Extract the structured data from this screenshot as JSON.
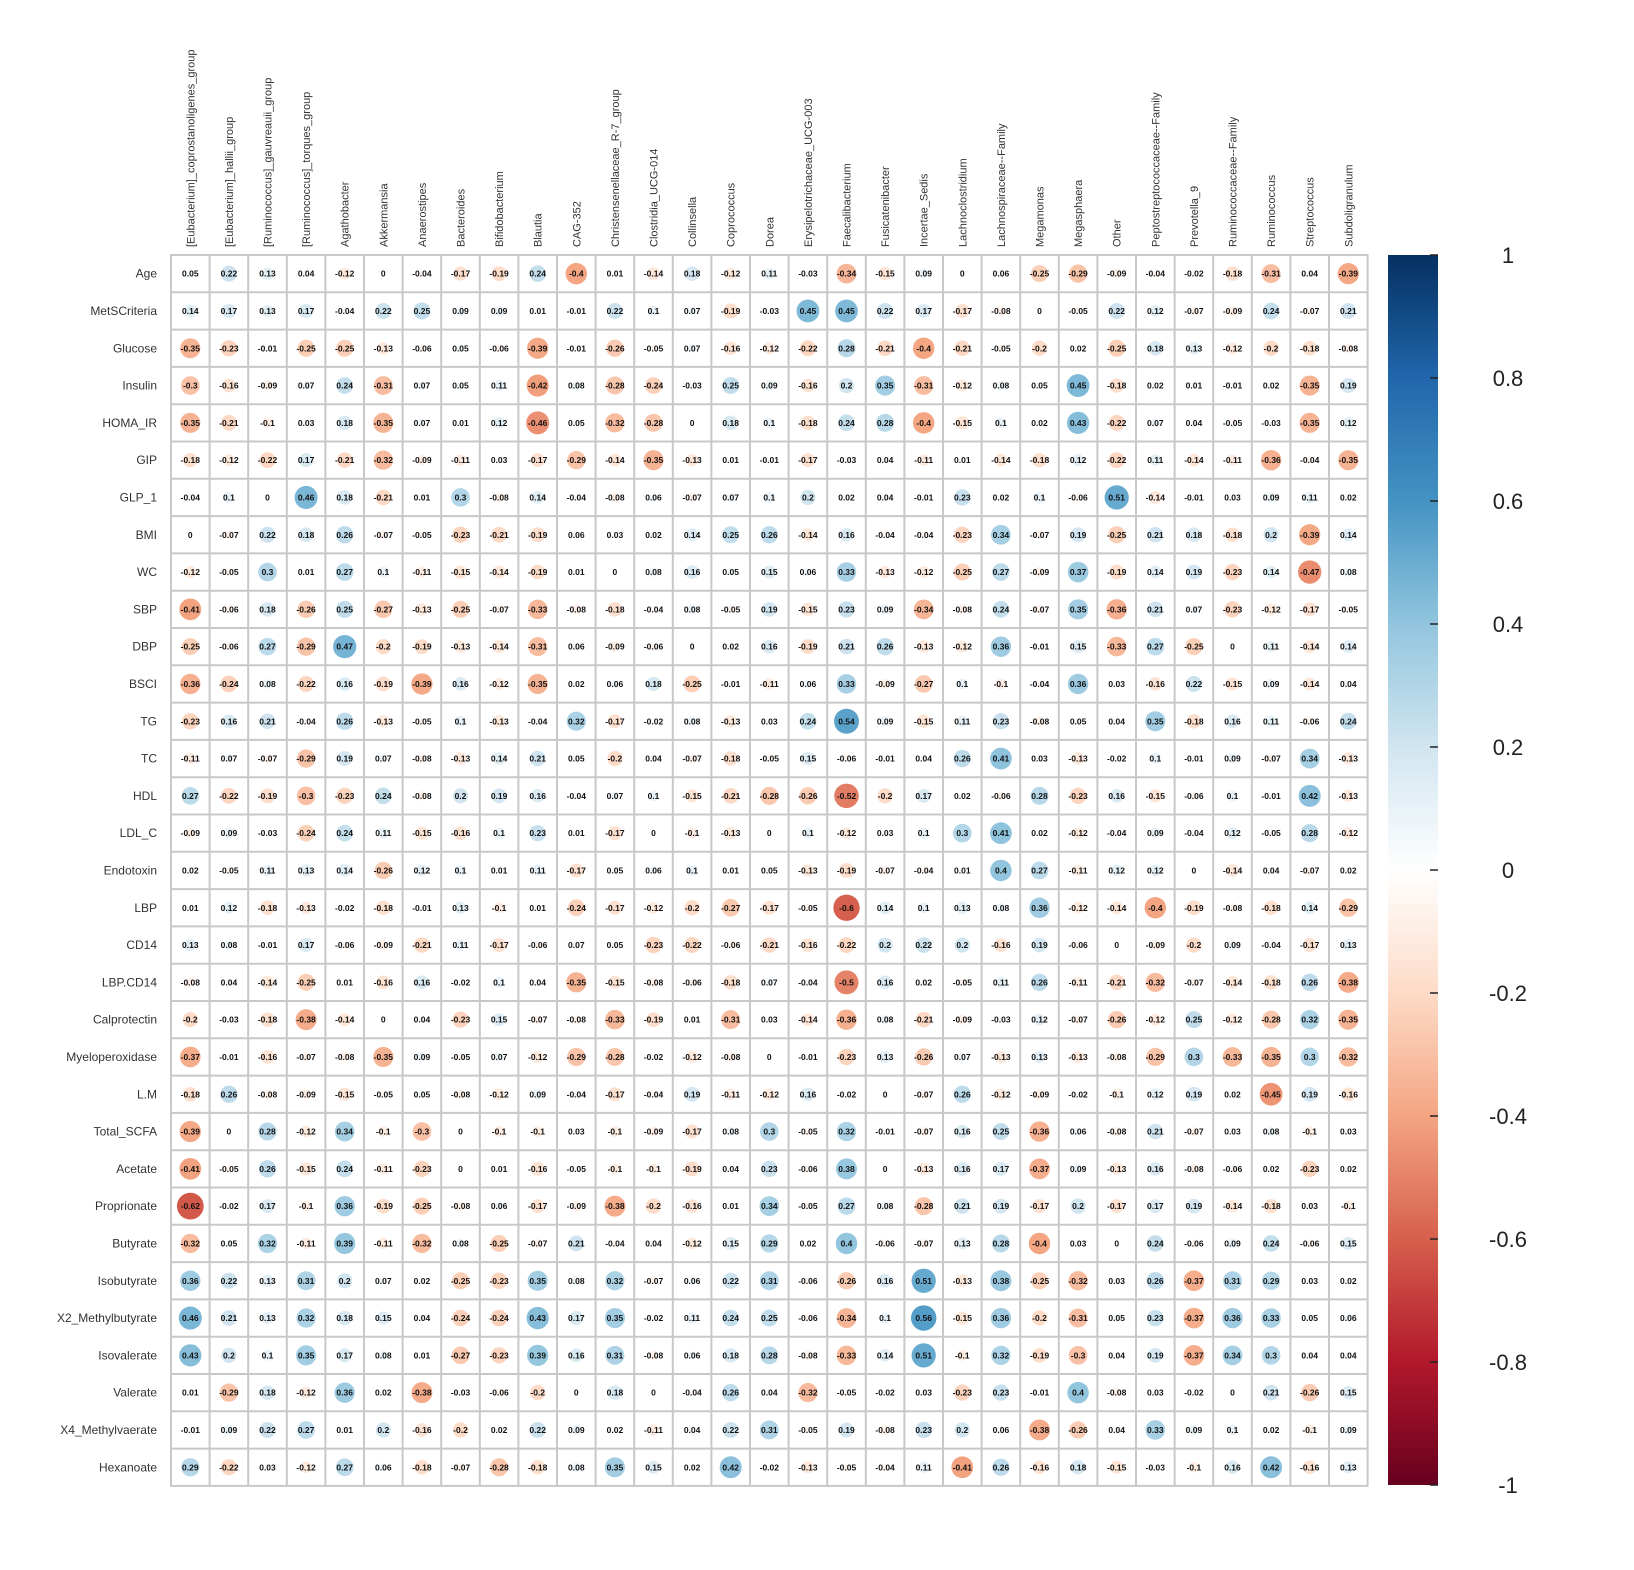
{
  "chart_data": {
    "type": "heatmap",
    "title": "",
    "columns": [
      "[Eubacterium]_coprostanoligenes_group",
      "[Eubacterium]_hallii_group",
      "[Ruminococcus]_gauvreauii_group",
      "[Ruminococcus]_torques_group",
      "Agathobacter",
      "Akkermansia",
      "Anaerostipes",
      "Bacteroides",
      "Bifidobacterium",
      "Blautia",
      "CAG-352",
      "Christensenellaceae_R-7_group",
      "Clostridia_UCG-014",
      "Collinsella",
      "Coprococcus",
      "Dorea",
      "Erysipelotrichaceae_UCG-003",
      "Faecalibacterium",
      "Fusicatenibacter",
      "Incertae_Sedis",
      "Lachnoclostridium",
      "Lachnospiraceae--Family",
      "Megamonas",
      "Megasphaera",
      "Other",
      "Peptostreptococcaceae--Family",
      "Prevotella_9",
      "Ruminococcaceae--Family",
      "Ruminococcus",
      "Streptococcus",
      "Subdoligranulum"
    ],
    "rows": [
      "Age",
      "MetSCriteria",
      "Glucose",
      "Insulin",
      "HOMA_IR",
      "GIP",
      "GLP_1",
      "BMI",
      "WC",
      "SBP",
      "DBP",
      "BSCI",
      "TG",
      "TC",
      "HDL",
      "LDL_C",
      "Endotoxin",
      "LBP",
      "CD14",
      "LBP.CD14",
      "Calprotectin",
      "Myeloperoxidase",
      "L.M",
      "Total_SCFA",
      "Acetate",
      "Proprionate",
      "Butyrate",
      "Isobutyrate",
      "X2_Methylbutyrate",
      "Isovalerate",
      "Valerate",
      "X4_Methylvaerate",
      "Hexanoate"
    ],
    "values": [
      [
        0.05,
        0.22,
        0.13,
        0.04,
        -0.12,
        0,
        -0.04,
        -0.17,
        -0.19,
        0.24,
        -0.4,
        0.01,
        -0.14,
        0.18,
        -0.12,
        0.11,
        -0.03,
        -0.34,
        -0.15,
        0.09,
        0,
        0.06,
        -0.25,
        -0.29,
        -0.09,
        -0.04,
        -0.02,
        -0.18,
        -0.31,
        0.04,
        -0.39
      ],
      [
        0.14,
        0.17,
        0.13,
        0.17,
        -0.04,
        0.22,
        0.25,
        0.09,
        0.09,
        0.01,
        -0.01,
        0.22,
        0.1,
        0.07,
        -0.19,
        -0.03,
        0.45,
        0.45,
        0.22,
        0.17,
        -0.17,
        -0.08,
        0,
        -0.05,
        0.22,
        0.12,
        -0.07,
        -0.09,
        0.24,
        -0.07,
        0.21
      ],
      [
        -0.35,
        -0.23,
        -0.01,
        -0.25,
        -0.25,
        -0.13,
        -0.06,
        0.05,
        -0.06,
        -0.39,
        -0.01,
        -0.26,
        -0.05,
        0.07,
        -0.16,
        -0.12,
        -0.22,
        0.28,
        -0.21,
        -0.4,
        -0.21,
        -0.05,
        -0.2,
        0.02,
        -0.25,
        0.18,
        0.13,
        -0.12,
        -0.2,
        -0.18,
        -0.08
      ],
      [
        -0.3,
        -0.16,
        -0.09,
        0.07,
        0.24,
        -0.31,
        0.07,
        0.05,
        0.11,
        -0.42,
        0.08,
        -0.28,
        -0.24,
        -0.03,
        0.25,
        0.09,
        -0.16,
        0.2,
        0.35,
        -0.31,
        -0.12,
        0.08,
        0.05,
        0.45,
        -0.18,
        0.02,
        0.01,
        -0.01,
        0.02,
        -0.35,
        0.19
      ],
      [
        -0.35,
        -0.21,
        -0.1,
        0.03,
        0.18,
        -0.35,
        0.07,
        0.01,
        0.12,
        -0.46,
        0.05,
        -0.32,
        -0.28,
        0,
        0.18,
        0.1,
        -0.18,
        0.24,
        0.28,
        -0.4,
        -0.15,
        0.1,
        0.02,
        0.43,
        -0.22,
        0.07,
        0.04,
        -0.05,
        -0.03,
        -0.35,
        0.12
      ],
      [
        -0.18,
        -0.12,
        -0.22,
        0.17,
        -0.21,
        -0.32,
        -0.09,
        -0.11,
        0.03,
        -0.17,
        -0.29,
        -0.14,
        -0.35,
        -0.13,
        0.01,
        -0.01,
        -0.17,
        -0.03,
        0.04,
        -0.11,
        0.01,
        -0.14,
        -0.18,
        0.12,
        -0.22,
        0.11,
        -0.14,
        -0.11,
        -0.36,
        -0.04,
        -0.35
      ],
      [
        -0.04,
        0.1,
        0,
        0.46,
        0.18,
        -0.21,
        0.01,
        0.3,
        -0.08,
        0.14,
        -0.04,
        -0.08,
        0.06,
        -0.07,
        0.07,
        0.1,
        0.2,
        0.02,
        0.04,
        -0.01,
        0.23,
        0.02,
        0.1,
        -0.06,
        0.51,
        -0.14,
        -0.01,
        0.03,
        0.09,
        0.11,
        0.02
      ],
      [
        0,
        -0.07,
        0.22,
        0.18,
        0.26,
        -0.07,
        -0.05,
        -0.23,
        -0.21,
        -0.19,
        0.06,
        0.03,
        0.02,
        0.14,
        0.25,
        0.26,
        -0.14,
        0.16,
        -0.04,
        -0.04,
        -0.23,
        0.34,
        -0.07,
        0.19,
        -0.25,
        0.21,
        0.18,
        -0.18,
        0.2,
        -0.39,
        0.14
      ],
      [
        -0.12,
        -0.05,
        0.3,
        0.01,
        0.27,
        0.1,
        -0.11,
        -0.15,
        -0.14,
        -0.19,
        0.01,
        0,
        0.08,
        0.16,
        0.05,
        0.15,
        0.06,
        0.33,
        -0.13,
        -0.12,
        -0.25,
        0.27,
        -0.09,
        0.37,
        -0.19,
        0.14,
        0.19,
        -0.23,
        0.14,
        -0.47,
        0.08
      ],
      [
        -0.41,
        -0.06,
        0.18,
        -0.26,
        0.25,
        -0.27,
        -0.13,
        -0.25,
        -0.07,
        -0.33,
        -0.08,
        -0.18,
        -0.04,
        0.08,
        -0.05,
        0.19,
        -0.15,
        0.23,
        0.09,
        -0.34,
        -0.08,
        0.24,
        -0.07,
        0.35,
        -0.36,
        0.21,
        0.07,
        -0.23,
        -0.12,
        -0.17,
        -0.05
      ],
      [
        -0.25,
        -0.06,
        0.27,
        -0.29,
        0.47,
        -0.2,
        -0.19,
        -0.13,
        -0.14,
        -0.31,
        0.06,
        -0.09,
        -0.06,
        0,
        0.02,
        0.16,
        -0.19,
        0.21,
        0.26,
        -0.13,
        -0.12,
        0.36,
        -0.01,
        0.15,
        -0.33,
        0.27,
        -0.25,
        0,
        0.11,
        -0.14,
        0.14
      ],
      [
        -0.36,
        -0.24,
        0.08,
        -0.22,
        0.16,
        -0.19,
        -0.39,
        0.16,
        -0.12,
        -0.35,
        0.02,
        0.06,
        0.18,
        -0.25,
        -0.01,
        -0.11,
        0.06,
        0.33,
        -0.09,
        -0.27,
        0.1,
        -0.1,
        -0.04,
        0.36,
        0.03,
        -0.16,
        0.22,
        -0.15,
        0.09,
        -0.14,
        0.04
      ],
      [
        -0.23,
        0.16,
        0.21,
        -0.04,
        0.26,
        -0.13,
        -0.05,
        0.1,
        -0.13,
        -0.04,
        0.32,
        -0.17,
        -0.02,
        0.08,
        -0.13,
        0.03,
        0.24,
        0.54,
        0.09,
        -0.15,
        0.11,
        0.23,
        -0.08,
        0.05,
        0.04,
        0.35,
        -0.18,
        0.16,
        0.11,
        -0.06,
        0.24
      ],
      [
        -0.11,
        0.07,
        -0.07,
        -0.29,
        0.19,
        0.07,
        -0.08,
        -0.13,
        0.14,
        0.21,
        0.05,
        -0.2,
        0.04,
        -0.07,
        -0.18,
        -0.05,
        0.15,
        -0.06,
        -0.01,
        0.04,
        0.26,
        0.41,
        0.03,
        -0.13,
        -0.02,
        0.1,
        -0.01,
        0.09,
        -0.07,
        0.34,
        -0.13
      ],
      [
        0.27,
        -0.22,
        -0.19,
        -0.3,
        -0.23,
        0.24,
        -0.08,
        0.2,
        0.19,
        0.16,
        -0.04,
        0.07,
        0.1,
        -0.15,
        -0.21,
        -0.28,
        -0.26,
        -0.52,
        -0.2,
        0.17,
        0.02,
        -0.06,
        0.28,
        -0.23,
        0.16,
        -0.15,
        -0.06,
        0.1,
        -0.01,
        0.42,
        -0.13
      ],
      [
        -0.09,
        0.09,
        -0.03,
        -0.24,
        0.24,
        0.11,
        -0.15,
        -0.16,
        0.1,
        0.23,
        0.01,
        -0.17,
        0,
        -0.1,
        -0.13,
        0,
        0.1,
        -0.12,
        0.03,
        0.1,
        0.3,
        0.41,
        0.02,
        -0.12,
        -0.04,
        0.09,
        -0.04,
        0.12,
        -0.05,
        0.28,
        -0.12
      ],
      [
        0.02,
        -0.05,
        0.11,
        0.13,
        0.14,
        -0.26,
        0.12,
        0.1,
        0.01,
        0.11,
        -0.17,
        0.05,
        0.06,
        0.1,
        0.01,
        0.05,
        -0.13,
        -0.19,
        -0.07,
        -0.04,
        0.01,
        0.4,
        0.27,
        -0.11,
        0.12,
        0.12,
        0,
        -0.14,
        0.04,
        -0.07,
        0.02
      ],
      [
        0.01,
        0.12,
        -0.18,
        -0.13,
        -0.02,
        -0.18,
        -0.01,
        0.13,
        -0.1,
        0.01,
        -0.24,
        -0.17,
        -0.12,
        -0.2,
        -0.27,
        -0.17,
        -0.05,
        -0.6,
        0.14,
        0.1,
        0.13,
        0.08,
        0.36,
        -0.12,
        -0.14,
        -0.4,
        -0.19,
        -0.08,
        -0.18,
        0.14,
        -0.29
      ],
      [
        0.13,
        0.08,
        -0.01,
        0.17,
        -0.06,
        -0.09,
        -0.21,
        0.11,
        -0.17,
        -0.06,
        0.07,
        0.05,
        -0.23,
        -0.22,
        -0.06,
        -0.21,
        -0.16,
        -0.22,
        0.2,
        0.22,
        0.2,
        -0.16,
        0.19,
        -0.06,
        0,
        -0.09,
        -0.2,
        0.09,
        -0.04,
        -0.17,
        0.13
      ],
      [
        -0.08,
        0.04,
        -0.14,
        -0.25,
        0.01,
        -0.16,
        0.16,
        -0.02,
        0.1,
        0.04,
        -0.35,
        -0.15,
        -0.08,
        -0.06,
        -0.18,
        0.07,
        -0.04,
        -0.5,
        0.16,
        0.02,
        -0.05,
        0.11,
        0.26,
        -0.11,
        -0.21,
        -0.32,
        -0.07,
        -0.14,
        -0.18,
        0.26,
        -0.38
      ],
      [
        -0.2,
        -0.03,
        -0.18,
        -0.38,
        -0.14,
        0,
        0.04,
        -0.23,
        0.15,
        -0.07,
        -0.08,
        -0.33,
        -0.19,
        0.01,
        -0.31,
        0.03,
        -0.14,
        -0.36,
        0.08,
        -0.21,
        -0.09,
        -0.03,
        0.12,
        -0.07,
        -0.26,
        -0.12,
        0.25,
        -0.12,
        -0.28,
        0.32,
        -0.35
      ],
      [
        -0.37,
        -0.01,
        -0.16,
        -0.07,
        -0.08,
        -0.35,
        0.09,
        -0.05,
        0.07,
        -0.12,
        -0.29,
        -0.28,
        -0.02,
        -0.12,
        -0.08,
        0,
        -0.01,
        -0.23,
        0.13,
        -0.26,
        0.07,
        -0.13,
        0.13,
        -0.13,
        -0.08,
        -0.29,
        0.3,
        -0.33,
        -0.35,
        0.3,
        -0.32
      ],
      [
        -0.18,
        0.26,
        -0.08,
        -0.09,
        -0.15,
        -0.05,
        0.05,
        -0.08,
        -0.12,
        0.09,
        -0.04,
        -0.17,
        -0.04,
        0.19,
        -0.11,
        -0.12,
        0.16,
        -0.02,
        0,
        -0.07,
        0.26,
        -0.12,
        -0.09,
        -0.02,
        -0.1,
        0.12,
        0.19,
        0.02,
        -0.45,
        0.19,
        -0.16
      ],
      [
        -0.39,
        0,
        0.28,
        -0.12,
        0.34,
        -0.1,
        -0.3,
        0,
        -0.1,
        -0.1,
        0.03,
        -0.1,
        -0.09,
        -0.17,
        0.08,
        0.3,
        -0.05,
        0.32,
        -0.01,
        -0.07,
        0.16,
        0.25,
        -0.36,
        0.06,
        -0.08,
        0.21,
        -0.07,
        0.03,
        0.08,
        -0.1,
        0.03
      ],
      [
        -0.41,
        -0.05,
        0.26,
        -0.15,
        0.24,
        -0.11,
        -0.23,
        0,
        0.01,
        -0.16,
        -0.05,
        -0.1,
        -0.1,
        -0.19,
        0.04,
        0.23,
        -0.06,
        0.38,
        0,
        -0.13,
        0.16,
        0.17,
        -0.37,
        0.09,
        -0.13,
        0.16,
        -0.08,
        -0.06,
        0.02,
        -0.23,
        0.02
      ],
      [
        -0.62,
        -0.02,
        0.17,
        -0.1,
        0.36,
        -0.19,
        -0.25,
        -0.08,
        0.06,
        -0.17,
        -0.09,
        -0.38,
        -0.2,
        -0.16,
        0.01,
        0.34,
        -0.05,
        0.27,
        0.08,
        -0.28,
        0.21,
        0.19,
        -0.17,
        0.2,
        -0.17,
        0.17,
        0.19,
        -0.14,
        -0.18,
        0.03,
        -0.1
      ],
      [
        -0.32,
        0.05,
        0.32,
        -0.11,
        0.39,
        -0.11,
        -0.32,
        0.08,
        -0.25,
        -0.07,
        0.21,
        -0.04,
        0.04,
        -0.12,
        0.15,
        0.29,
        0.02,
        0.4,
        -0.06,
        -0.07,
        0.13,
        0.28,
        -0.4,
        0.03,
        0,
        0.24,
        -0.06,
        0.09,
        0.24,
        -0.06,
        0.15
      ],
      [
        0.36,
        0.22,
        0.13,
        0.31,
        0.2,
        0.07,
        0.02,
        -0.25,
        -0.23,
        0.35,
        0.08,
        0.32,
        -0.07,
        0.06,
        0.22,
        0.31,
        -0.06,
        -0.26,
        0.16,
        0.51,
        -0.13,
        0.38,
        -0.25,
        -0.32,
        0.03,
        0.26,
        -0.37,
        0.31,
        0.29,
        0.03,
        0.02
      ],
      [
        0.46,
        0.21,
        0.13,
        0.32,
        0.18,
        0.15,
        0.04,
        -0.24,
        -0.24,
        0.43,
        0.17,
        0.35,
        -0.02,
        0.11,
        0.24,
        0.25,
        -0.06,
        -0.34,
        0.1,
        0.56,
        -0.15,
        0.36,
        -0.2,
        -0.31,
        0.05,
        0.23,
        -0.37,
        0.36,
        0.33,
        0.05,
        0.06
      ],
      [
        0.43,
        0.2,
        0.1,
        0.35,
        0.17,
        0.08,
        0.01,
        -0.27,
        -0.23,
        0.39,
        0.16,
        0.31,
        -0.08,
        0.06,
        0.18,
        0.28,
        -0.08,
        -0.33,
        0.14,
        0.51,
        -0.1,
        0.32,
        -0.19,
        -0.3,
        0.04,
        0.19,
        -0.37,
        0.34,
        0.3,
        0.04,
        0.04
      ],
      [
        0.01,
        -0.29,
        0.18,
        -0.12,
        0.36,
        0.02,
        -0.38,
        -0.03,
        -0.06,
        -0.2,
        0,
        0.18,
        0,
        -0.04,
        0.26,
        0.04,
        -0.32,
        -0.05,
        -0.02,
        0.03,
        -0.23,
        0.23,
        -0.01,
        0.4,
        -0.08,
        0.03,
        -0.02,
        0,
        0.21,
        -0.26,
        0.15
      ],
      [
        -0.01,
        0.09,
        0.22,
        0.27,
        0.01,
        0.2,
        -0.16,
        -0.2,
        0.02,
        0.22,
        0.09,
        0.02,
        -0.11,
        0.04,
        0.22,
        0.31,
        -0.05,
        0.19,
        -0.08,
        0.23,
        0.2,
        0.06,
        -0.38,
        -0.26,
        0.04,
        0.33,
        0.09,
        0.1,
        0.02,
        -0.1,
        0.09
      ],
      [
        0.29,
        -0.22,
        0.03,
        -0.12,
        0.27,
        0.06,
        -0.18,
        -0.07,
        -0.28,
        -0.18,
        0.08,
        0.35,
        0.15,
        0.02,
        0.42,
        -0.02,
        -0.13,
        -0.05,
        -0.04,
        0.11,
        -0.41,
        0.26,
        -0.16,
        0.18,
        -0.15,
        -0.03,
        -0.1,
        0.16,
        0.42,
        -0.16,
        0.13
      ]
    ],
    "colorbar": {
      "range": [
        -1,
        1
      ],
      "ticks": [
        "1",
        "0.8",
        "0.6",
        "0.4",
        "0.2",
        "0",
        "-0.2",
        "-0.4",
        "-0.6",
        "-0.8",
        "-1"
      ],
      "colors": [
        "#67001F",
        "#B2182B",
        "#D6604D",
        "#F4A582",
        "#FDDBC7",
        "#FFFFFF",
        "#D1E5F0",
        "#92C5DE",
        "#4393C3",
        "#2166AC",
        "#053061"
      ]
    },
    "legend": "right"
  }
}
